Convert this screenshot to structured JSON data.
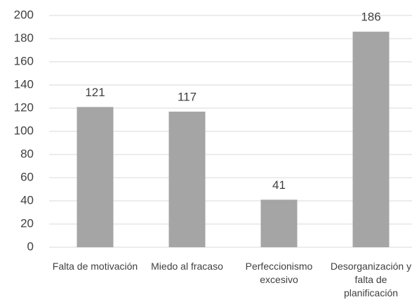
{
  "chart_data": {
    "type": "bar",
    "categories": [
      "Falta de motivación",
      "Miedo al fracaso",
      "Perfeccionismo excesivo",
      "Desorganización y falta de planificación"
    ],
    "values": [
      121,
      117,
      41,
      186
    ],
    "color": "#a5a5a5",
    "ylim": [
      0,
      200
    ],
    "yticks": [
      0,
      20,
      40,
      60,
      80,
      100,
      120,
      140,
      160,
      180,
      200
    ],
    "grid": true
  }
}
